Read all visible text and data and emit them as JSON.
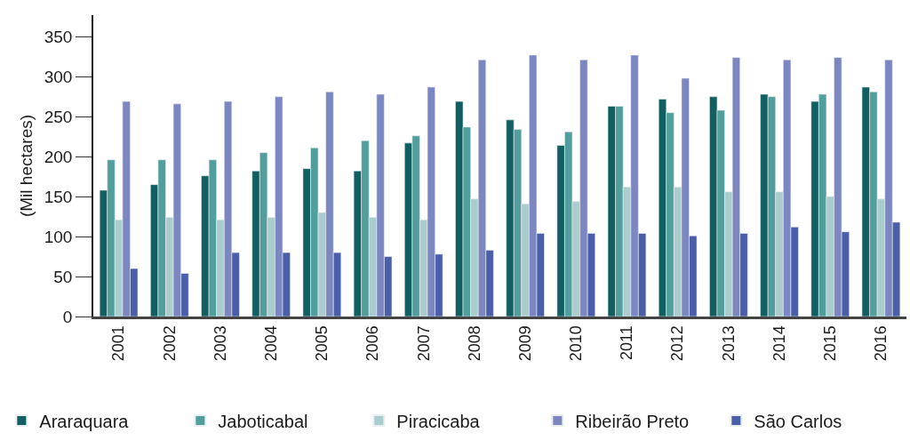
{
  "chart_data": {
    "type": "bar",
    "ylabel": "(Mil hectares)",
    "categories": [
      "2001",
      "2002",
      "2003",
      "2004",
      "2005",
      "2006",
      "2007",
      "2008",
      "2009",
      "2010",
      "2011",
      "2012",
      "2013",
      "2014",
      "2015",
      "2016"
    ],
    "series": [
      {
        "name": "Araraquara",
        "color": "#125f62",
        "values": [
          158,
          165,
          176,
          182,
          185,
          182,
          217,
          269,
          246,
          214,
          263,
          272,
          275,
          278,
          269,
          287
        ]
      },
      {
        "name": "Jaboticabal",
        "color": "#529e9c",
        "values": [
          196,
          196,
          196,
          205,
          211,
          220,
          226,
          237,
          234,
          231,
          263,
          255,
          258,
          275,
          278,
          281
        ]
      },
      {
        "name": "Piracicaba",
        "color": "#abcccc",
        "values": [
          121,
          124,
          121,
          124,
          130,
          124,
          121,
          147,
          141,
          144,
          162,
          162,
          156,
          156,
          150,
          147
        ]
      },
      {
        "name": "Ribeirão Preto",
        "color": "#7c87c2",
        "values": [
          269,
          266,
          269,
          275,
          281,
          278,
          287,
          321,
          327,
          321,
          327,
          298,
          324,
          321,
          324,
          321
        ]
      },
      {
        "name": "São Carlos",
        "color": "#4b5ea9",
        "values": [
          60,
          54,
          80,
          80,
          80,
          75,
          78,
          83,
          104,
          104,
          104,
          101,
          104,
          112,
          106,
          118
        ]
      }
    ],
    "ylim": [
      0,
      377
    ],
    "yticks": [
      0,
      50,
      100,
      150,
      200,
      250,
      300,
      350
    ],
    "grid": false,
    "legend": "bottom"
  }
}
